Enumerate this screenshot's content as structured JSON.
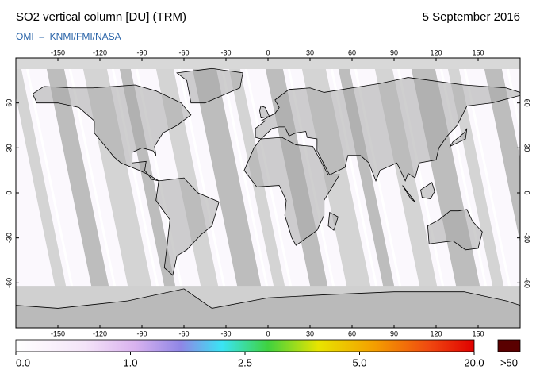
{
  "header": {
    "title": "SO2 vertical column [DU] (TRM)",
    "date": "5 September 2016",
    "subtitle": "OMI  –  KNMI/FMI/NASA"
  },
  "map": {
    "xlim": [
      -180,
      180
    ],
    "ylim": [
      -90,
      90
    ],
    "xticks": [
      -150,
      -120,
      -90,
      -60,
      -30,
      0,
      30,
      60,
      90,
      120,
      150
    ],
    "yticks": [
      -60,
      -30,
      0,
      30,
      60
    ]
  },
  "colorbar": {
    "ticks": [
      {
        "value": 0,
        "label": "0.0"
      },
      {
        "value": 1,
        "label": "1.0"
      },
      {
        "value": 2.5,
        "label": "2.5"
      },
      {
        "value": 5,
        "label": "5.0"
      },
      {
        "value": 20,
        "label": "20.0"
      }
    ],
    "overflow": ">50"
  }
}
